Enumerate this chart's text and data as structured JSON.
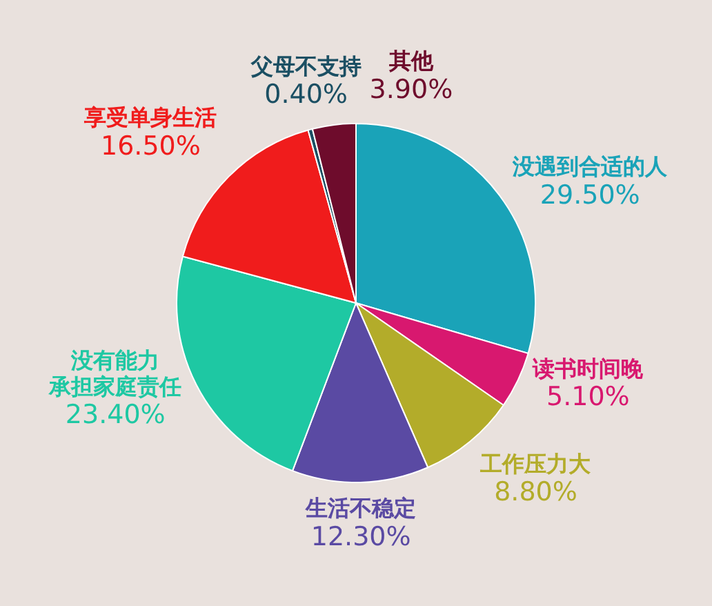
{
  "chart_data": {
    "type": "pie",
    "categories": [
      "没遇到合适的人",
      "读书时间晚",
      "工作压力大",
      "生活不稳定",
      "没有能力承担家庭责任",
      "享受单身生活",
      "父母不支持",
      "其他"
    ],
    "values": [
      29.5,
      5.1,
      8.8,
      12.3,
      23.4,
      16.5,
      0.4,
      3.9
    ],
    "value_labels": [
      "29.50%",
      "5.10%",
      "8.80%",
      "12.30%",
      "23.40%",
      "16.50%",
      "0.40%",
      "3.90%"
    ],
    "colors": [
      "#1aa3b8",
      "#d8186f",
      "#b3ac2a",
      "#5a4aa3",
      "#1ec8a3",
      "#f01c1c",
      "#1b4f63",
      "#6e0c2c"
    ],
    "legend": false
  }
}
